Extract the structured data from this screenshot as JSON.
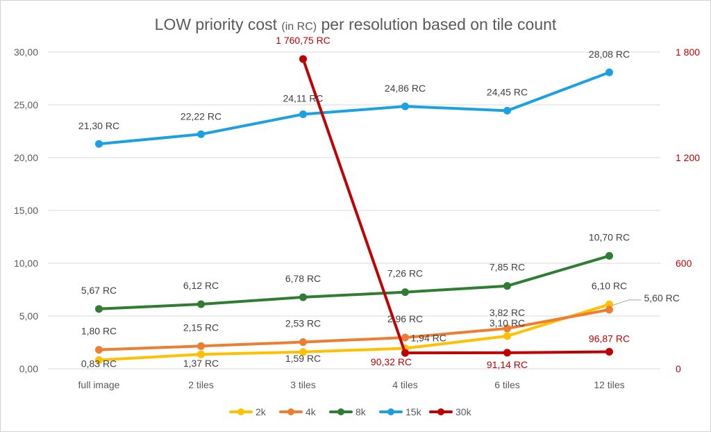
{
  "chart_data": {
    "type": "line",
    "title": "LOW priority cost ",
    "title_small": "(in RC)",
    "title_rest": " per resolution based on tile count",
    "categories": [
      "full image",
      "2 tiles",
      "3 tiles",
      "4 tiles",
      "6 tiles",
      "12 tiles"
    ],
    "ylim": [
      0,
      30
    ],
    "y_ticks": [
      "0,00",
      "5,00",
      "10,00",
      "15,00",
      "20,00",
      "25,00",
      "30,00"
    ],
    "y2lim": [
      0,
      1800
    ],
    "y2_ticks": [
      "0",
      "600",
      "1 200",
      "1 800"
    ],
    "grid": true,
    "legend_position": "bottom",
    "series": [
      {
        "name": "2k",
        "color": "#ffc000",
        "axis": "left",
        "values": [
          0.83,
          1.37,
          1.59,
          1.94,
          3.1,
          6.1
        ],
        "labels": [
          "0,83 RC",
          "1,37 RC",
          "1,59 RC",
          "1,94 RC",
          "3,10 RC",
          "6,10 RC"
        ]
      },
      {
        "name": "4k",
        "color": "#ed7d31",
        "axis": "left",
        "values": [
          1.8,
          2.15,
          2.53,
          2.96,
          3.82,
          5.6
        ],
        "labels": [
          "1,80 RC",
          "2,15 RC",
          "2,53 RC",
          "2,96 RC",
          "3,82 RC",
          "5,60 RC"
        ]
      },
      {
        "name": "8k",
        "color": "#2e7d32",
        "axis": "left",
        "values": [
          5.67,
          6.12,
          6.78,
          7.26,
          7.85,
          10.7
        ],
        "labels": [
          "5,67 RC",
          "6,12 RC",
          "6,78 RC",
          "7,26 RC",
          "7,85 RC",
          "10,70 RC"
        ]
      },
      {
        "name": "15k",
        "color": "#1ba1e2",
        "axis": "left",
        "values": [
          21.3,
          22.22,
          24.11,
          24.86,
          24.45,
          28.08
        ],
        "labels": [
          "21,30 RC",
          "22,22 RC",
          "24,11 RC",
          "24,86 RC",
          "24,45 RC",
          "28,08 RC"
        ]
      },
      {
        "name": "30k",
        "color": "#c00000",
        "axis": "right",
        "values": [
          null,
          null,
          1760.75,
          90.32,
          91.14,
          96.87
        ],
        "labels": [
          "",
          "",
          "1 760,75 RC",
          "90,32 RC",
          "91,14 RC",
          "96,87 RC"
        ]
      }
    ]
  }
}
